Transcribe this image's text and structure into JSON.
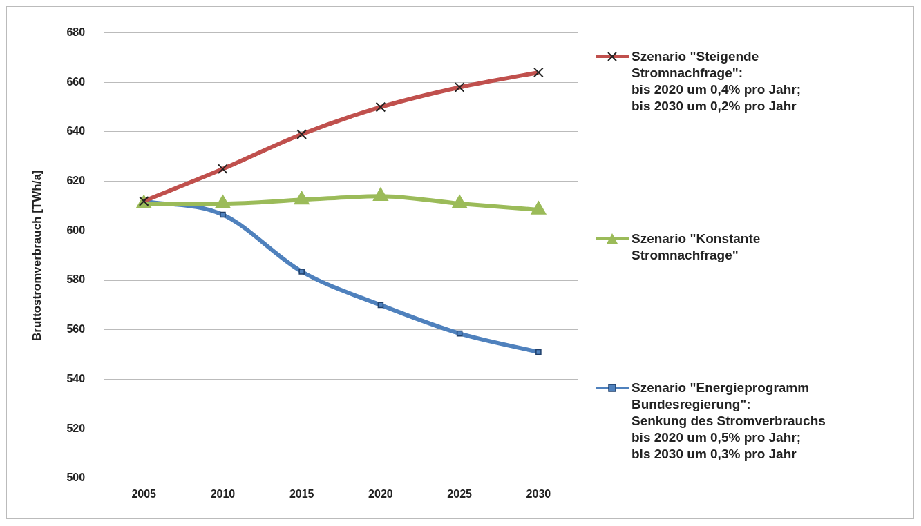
{
  "chart_data": {
    "type": "line",
    "ylabel": "Bruttostromverbrauch [TWh/a]",
    "categories": [
      "2005",
      "2010",
      "2015",
      "2020",
      "2025",
      "2030"
    ],
    "ylim": [
      500,
      680
    ],
    "yticks": [
      500,
      520,
      540,
      560,
      580,
      600,
      620,
      640,
      660,
      680
    ],
    "grid": "y",
    "legend": "right",
    "series": [
      {
        "name": "Szenario \"Steigende\nStromnachfrage\":\nbis 2020 um 0,4% pro Jahr;\nbis 2030 um 0,2% pro Jahr",
        "color": "#c0504d",
        "marker": "cross",
        "values": [
          612,
          625,
          639,
          650,
          658,
          664
        ]
      },
      {
        "name": "Szenario \"Konstante\nStromnachfrage\"",
        "color": "#9bbb59",
        "marker": "triangle",
        "values": [
          611,
          611,
          612.5,
          614,
          611,
          608.5
        ]
      },
      {
        "name": "Szenario \"Energieprogramm\nBundesregierung\":\nSenkung des Stromverbrauchs\nbis 2020 um 0,5% pro Jahr;\nbis 2030 um 0,3% pro Jahr",
        "color": "#4f81bd",
        "marker": "square",
        "values": [
          612,
          606.5,
          583.5,
          570,
          558.5,
          551
        ]
      }
    ]
  }
}
